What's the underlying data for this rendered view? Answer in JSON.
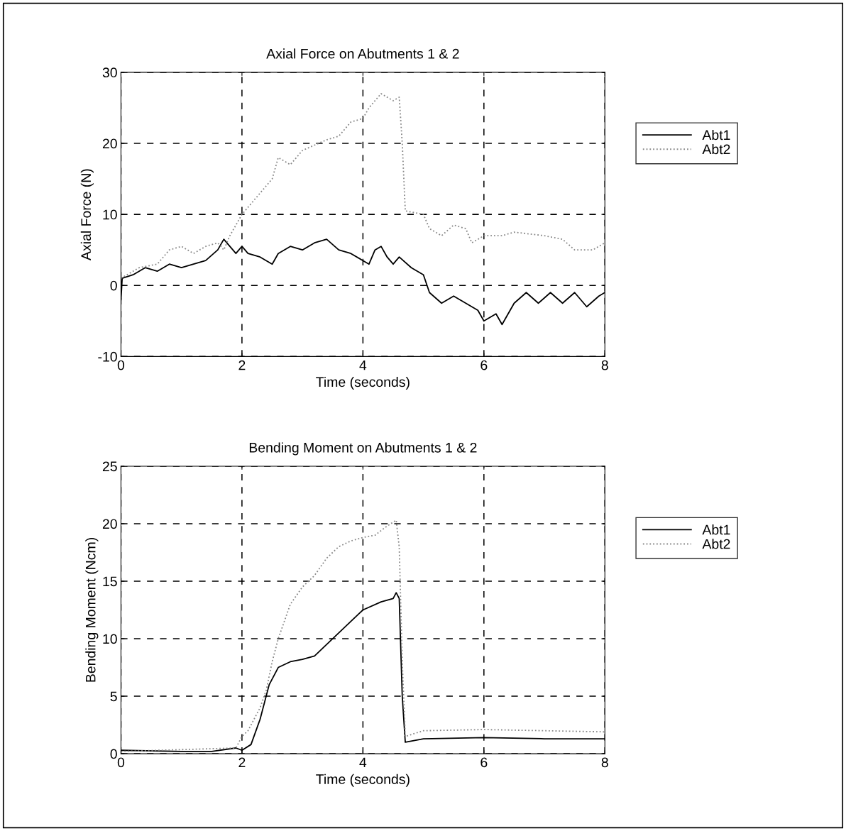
{
  "chart_data": [
    {
      "type": "line",
      "title": "Axial Force on Abutments 1 & 2",
      "xlabel": "Time (seconds)",
      "ylabel": "Axial Force (N)",
      "xlim": [
        0,
        8
      ],
      "xticks": [
        0,
        2,
        4,
        6,
        8
      ],
      "ylim": [
        -10,
        30
      ],
      "yticks": [
        -10,
        0,
        10,
        20,
        30
      ],
      "grid": true,
      "legend": "right",
      "series": [
        {
          "name": "Abt1",
          "color": "#000000",
          "line_style": "solid",
          "x": [
            0,
            0.02,
            0.2,
            0.4,
            0.6,
            0.8,
            1.0,
            1.2,
            1.4,
            1.6,
            1.7,
            1.8,
            1.9,
            2.0,
            2.1,
            2.3,
            2.5,
            2.6,
            2.8,
            3.0,
            3.2,
            3.4,
            3.6,
            3.8,
            4.0,
            4.1,
            4.2,
            4.3,
            4.4,
            4.5,
            4.6,
            4.8,
            5.0,
            5.1,
            5.3,
            5.5,
            5.7,
            5.9,
            6.0,
            6.2,
            6.3,
            6.5,
            6.7,
            6.9,
            7.1,
            7.3,
            7.5,
            7.7,
            7.9,
            8.0
          ],
          "values": [
            -2,
            1,
            1.5,
            2.5,
            2,
            3,
            2.5,
            3,
            3.5,
            5,
            6.5,
            5.5,
            4.5,
            5.5,
            4.5,
            4,
            3,
            4.5,
            5.5,
            5,
            6,
            6.5,
            5,
            4.5,
            3.5,
            3,
            5,
            5.5,
            4,
            3,
            4,
            2.5,
            1.5,
            -1,
            -2.5,
            -1.5,
            -2.5,
            -3.5,
            -5,
            -4,
            -5.5,
            -2.5,
            -1,
            -2.5,
            -1,
            -2.5,
            -1,
            -3,
            -1.5,
            -1
          ]
        },
        {
          "name": "Abt2",
          "color": "#888888",
          "line_style": "dotted",
          "x": [
            0,
            0.3,
            0.6,
            0.8,
            1.0,
            1.2,
            1.4,
            1.6,
            1.7,
            1.8,
            2.0,
            2.2,
            2.5,
            2.6,
            2.8,
            3.0,
            3.4,
            3.6,
            3.8,
            4.0,
            4.1,
            4.3,
            4.5,
            4.6,
            4.65,
            4.7,
            5.0,
            5.1,
            5.3,
            5.5,
            5.7,
            5.8,
            6.0,
            6.3,
            6.5,
            7.0,
            7.3,
            7.5,
            7.8,
            8.0
          ],
          "values": [
            1,
            2.5,
            3,
            5,
            5.5,
            4.5,
            5.5,
            6,
            5,
            7,
            10,
            12,
            15,
            18,
            17,
            19,
            20.5,
            21,
            23,
            23.5,
            25,
            27,
            26,
            26.5,
            20,
            10.5,
            10,
            8,
            7,
            8.5,
            8,
            6,
            7,
            7,
            7.5,
            7,
            6.5,
            5,
            5,
            6
          ]
        }
      ]
    },
    {
      "type": "line",
      "title": "Bending Moment on Abutments 1 & 2",
      "xlabel": "Time (seconds)",
      "ylabel": "Bending Moment (Ncm)",
      "xlim": [
        0,
        8
      ],
      "xticks": [
        0,
        2,
        4,
        6,
        8
      ],
      "ylim": [
        0,
        25
      ],
      "yticks": [
        0,
        5,
        10,
        15,
        20,
        25
      ],
      "grid": true,
      "legend": "right",
      "series": [
        {
          "name": "Abt1",
          "color": "#000000",
          "line_style": "solid",
          "x": [
            0,
            1,
            1.5,
            1.9,
            2.0,
            2.15,
            2.3,
            2.45,
            2.6,
            2.8,
            3.0,
            3.2,
            3.4,
            3.6,
            3.8,
            4.0,
            4.3,
            4.5,
            4.55,
            4.6,
            4.65,
            4.7,
            5.0,
            6,
            7,
            8
          ],
          "values": [
            0.3,
            0.2,
            0.2,
            0.5,
            0.3,
            0.8,
            3,
            6,
            7.5,
            8,
            8.2,
            8.5,
            9.5,
            10.5,
            11.5,
            12.5,
            13.2,
            13.5,
            14,
            13.5,
            5,
            1,
            1.3,
            1.4,
            1.3,
            1.3
          ]
        },
        {
          "name": "Abt2",
          "color": "#888888",
          "line_style": "dotted",
          "x": [
            0,
            1.9,
            2.0,
            2.1,
            2.3,
            2.4,
            2.5,
            2.6,
            2.8,
            3.0,
            3.2,
            3.4,
            3.6,
            3.8,
            4.0,
            4.2,
            4.4,
            4.55,
            4.6,
            4.65,
            4.7,
            5.0,
            6,
            7,
            8
          ],
          "values": [
            0.2,
            0.5,
            1.5,
            2,
            4,
            5.5,
            8,
            10,
            13,
            14.5,
            15.5,
            17,
            18,
            18.5,
            18.8,
            19,
            19.8,
            20.3,
            18,
            8,
            1.5,
            2,
            2.1,
            2,
            1.9
          ]
        }
      ]
    }
  ]
}
